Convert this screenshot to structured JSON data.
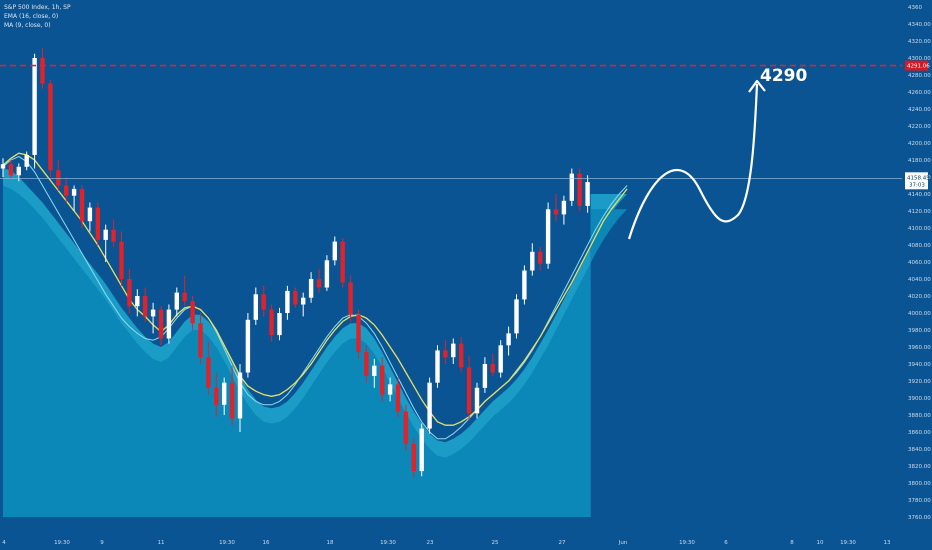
{
  "legend": {
    "title": "S&P 500 Index, 1h, SP",
    "ema": "EMA (16, close, 0)",
    "ma": "MA (9, close, 0)"
  },
  "colors": {
    "background": "#0a5494",
    "area_light": "#0b87b8",
    "area_dark": "#1a9cc6",
    "bull": "#ffffff",
    "bear": "#e0222b",
    "ema": "#e8e060",
    "ma": "#8fdcec",
    "target_line": "#e0222b",
    "current_line": "#9fc3e2"
  },
  "target": {
    "label": "4290",
    "price": 4291.06,
    "price_tag": "4291.06"
  },
  "current": {
    "price": 4158.45,
    "price_tag": "4158.45",
    "timer": "37:03"
  },
  "chart_data": {
    "type": "candlestick",
    "y_axis": {
      "min": 3760,
      "max": 4360,
      "ticks": [
        4360,
        4340,
        4320,
        4300,
        4280,
        4260,
        4240,
        4220,
        4200,
        4180,
        4160,
        4140,
        4120,
        4100,
        4080,
        4060,
        4040,
        4020,
        4000,
        3980,
        3960,
        3940,
        3920,
        3900,
        3880,
        3860,
        3840,
        3820,
        3800,
        3780,
        3760
      ],
      "tick_labels": [
        "4360",
        "4340.00",
        "4320.00",
        "4300.00",
        "4280.00",
        "4260.00",
        "4240.00",
        "4220.00",
        "4200.00",
        "4180.00",
        "4160.00",
        "4140.00",
        "4120.00",
        "4100.00",
        "4080.00",
        "4060.00",
        "4040.00",
        "4020.00",
        "4000.00",
        "3980.00",
        "3960.00",
        "3940.00",
        "3920.00",
        "3900.00",
        "3880.00",
        "3860.00",
        "3840.00",
        "3820.00",
        "3800.00",
        "3780.00",
        "3760.00"
      ]
    },
    "x_axis": {
      "labels": [
        "4",
        "19:30",
        "9",
        "11",
        "19:30",
        "16",
        "18",
        "19:30",
        "23",
        "25",
        "27",
        "Jun",
        "19:30",
        "6",
        "8",
        "10",
        "19:30",
        "13"
      ]
    },
    "candles": [
      [
        4170,
        4182,
        4160,
        4175
      ],
      [
        4175,
        4180,
        4158,
        4162
      ],
      [
        4162,
        4176,
        4155,
        4172
      ],
      [
        4172,
        4190,
        4168,
        4186
      ],
      [
        4186,
        4305,
        4170,
        4300
      ],
      [
        4300,
        4312,
        4264,
        4270
      ],
      [
        4270,
        4274,
        4160,
        4168
      ],
      [
        4168,
        4180,
        4144,
        4150
      ],
      [
        4150,
        4160,
        4130,
        4138
      ],
      [
        4138,
        4150,
        4120,
        4146
      ],
      [
        4146,
        4150,
        4100,
        4108
      ],
      [
        4108,
        4130,
        4096,
        4124
      ],
      [
        4124,
        4130,
        4080,
        4086
      ],
      [
        4086,
        4104,
        4060,
        4098
      ],
      [
        4098,
        4110,
        4078,
        4084
      ],
      [
        4084,
        4096,
        4032,
        4040
      ],
      [
        4040,
        4052,
        4000,
        4008
      ],
      [
        4008,
        4028,
        3996,
        4020
      ],
      [
        4020,
        4030,
        3990,
        3996
      ],
      [
        3996,
        4012,
        3976,
        4004
      ],
      [
        4004,
        4008,
        3962,
        3970
      ],
      [
        3970,
        4010,
        3964,
        4004
      ],
      [
        4004,
        4030,
        3996,
        4024
      ],
      [
        4024,
        4044,
        4008,
        4014
      ],
      [
        4014,
        4020,
        3980,
        3988
      ],
      [
        3988,
        4000,
        3940,
        3948
      ],
      [
        3948,
        3966,
        3904,
        3912
      ],
      [
        3912,
        3930,
        3878,
        3892
      ],
      [
        3892,
        3924,
        3880,
        3918
      ],
      [
        3918,
        3938,
        3868,
        3876
      ],
      [
        3876,
        3940,
        3860,
        3930
      ],
      [
        3930,
        4000,
        3924,
        3992
      ],
      [
        3992,
        4030,
        3986,
        4022
      ],
      [
        4022,
        4032,
        3996,
        4004
      ],
      [
        4004,
        4010,
        3966,
        3974
      ],
      [
        3974,
        4006,
        3968,
        4000
      ],
      [
        4000,
        4032,
        3992,
        4026
      ],
      [
        4026,
        4030,
        4006,
        4010
      ],
      [
        4010,
        4024,
        3996,
        4018
      ],
      [
        4018,
        4048,
        4012,
        4040
      ],
      [
        4040,
        4052,
        4024,
        4030
      ],
      [
        4030,
        4068,
        4026,
        4062
      ],
      [
        4062,
        4090,
        4056,
        4084
      ],
      [
        4084,
        4088,
        4030,
        4036
      ],
      [
        4036,
        4044,
        3990,
        3998
      ],
      [
        3998,
        4004,
        3946,
        3954
      ],
      [
        3954,
        3962,
        3918,
        3926
      ],
      [
        3926,
        3946,
        3912,
        3938
      ],
      [
        3938,
        3948,
        3896,
        3904
      ],
      [
        3904,
        3924,
        3896,
        3916
      ],
      [
        3916,
        3924,
        3878,
        3884
      ],
      [
        3884,
        3892,
        3838,
        3846
      ],
      [
        3846,
        3852,
        3806,
        3814
      ],
      [
        3814,
        3870,
        3808,
        3864
      ],
      [
        3864,
        3924,
        3858,
        3918
      ],
      [
        3918,
        3962,
        3912,
        3956
      ],
      [
        3956,
        3968,
        3940,
        3948
      ],
      [
        3948,
        3970,
        3940,
        3964
      ],
      [
        3964,
        3972,
        3930,
        3936
      ],
      [
        3936,
        3950,
        3874,
        3882
      ],
      [
        3882,
        3918,
        3876,
        3912
      ],
      [
        3912,
        3948,
        3906,
        3940
      ],
      [
        3940,
        3952,
        3926,
        3930
      ],
      [
        3930,
        3968,
        3924,
        3962
      ],
      [
        3962,
        3984,
        3950,
        3976
      ],
      [
        3976,
        4022,
        3970,
        4016
      ],
      [
        4016,
        4056,
        4010,
        4050
      ],
      [
        4050,
        4082,
        4044,
        4072
      ],
      [
        4072,
        4078,
        4050,
        4058
      ],
      [
        4058,
        4130,
        4052,
        4122
      ],
      [
        4122,
        4140,
        4108,
        4116
      ],
      [
        4116,
        4138,
        4104,
        4132
      ],
      [
        4132,
        4170,
        4126,
        4164
      ],
      [
        4164,
        4170,
        4120,
        4126
      ],
      [
        4126,
        4162,
        4118,
        4154
      ]
    ],
    "ema": [
      4174,
      4182,
      4188,
      4186,
      4180,
      4168,
      4156,
      4144,
      4132,
      4120,
      4108,
      4094,
      4080,
      4064,
      4048,
      4032,
      4016,
      4004,
      3996,
      3986,
      3978,
      3986,
      3998,
      4006,
      4008,
      4004,
      3994,
      3980,
      3962,
      3944,
      3926,
      3914,
      3908,
      3904,
      3902,
      3904,
      3910,
      3918,
      3928,
      3940,
      3954,
      3968,
      3980,
      3990,
      3996,
      3998,
      3994,
      3986,
      3974,
      3960,
      3946,
      3930,
      3914,
      3898,
      3884,
      3872,
      3868,
      3868,
      3872,
      3878,
      3886,
      3896,
      3904,
      3912,
      3920,
      3932,
      3944,
      3958,
      3972,
      3988,
      4004,
      4020,
      4036,
      4054,
      4072,
      4090,
      4108,
      4122,
      4134,
      4146
    ],
    "ma": [
      4172,
      4180,
      4184,
      4178,
      4166,
      4150,
      4134,
      4118,
      4102,
      4086,
      4070,
      4054,
      4038,
      4022,
      4008,
      3994,
      3984,
      3976,
      3970,
      3968,
      3972,
      3982,
      3994,
      4004,
      4008,
      4004,
      3994,
      3978,
      3958,
      3938,
      3918,
      3904,
      3896,
      3892,
      3892,
      3896,
      3904,
      3916,
      3930,
      3944,
      3958,
      3972,
      3984,
      3994,
      3998,
      3996,
      3988,
      3976,
      3960,
      3942,
      3924,
      3906,
      3888,
      3872,
      3860,
      3852,
      3852,
      3858,
      3866,
      3876,
      3886,
      3896,
      3904,
      3912,
      3920,
      3930,
      3942,
      3956,
      3972,
      3990,
      4008,
      4026,
      4044,
      4062,
      4080,
      4098,
      4114,
      4128,
      4140,
      4150
    ],
    "band_upper": [
      4170,
      4168,
      4160,
      4150,
      4140,
      4130,
      4118,
      4106,
      4094,
      4082,
      4070,
      4058,
      4046,
      4034,
      4020,
      4006,
      3994,
      3982,
      3972,
      3964,
      3960,
      3966,
      3978,
      3990,
      3998,
      3998,
      3990,
      3978,
      3962,
      3944,
      3926,
      3910,
      3898,
      3890,
      3888,
      3890,
      3896,
      3906,
      3918,
      3932,
      3946,
      3960,
      3972,
      3982,
      3988,
      3988,
      3982,
      3970,
      3954,
      3936,
      3918,
      3900,
      3884,
      3870,
      3858,
      3850,
      3848,
      3852,
      3858,
      3866,
      3876,
      3886,
      3896,
      3904,
      3912,
      3922,
      3934,
      3948,
      3964,
      3980,
      3998,
      4016,
      4034,
      4052,
      4070,
      4088,
      4104,
      4118,
      4130,
      4140
    ],
    "band_lower": [
      4150,
      4146,
      4140,
      4132,
      4122,
      4112,
      4100,
      4088,
      4076,
      4064,
      4052,
      4040,
      4028,
      4016,
      4002,
      3988,
      3976,
      3964,
      3954,
      3946,
      3942,
      3948,
      3960,
      3972,
      3980,
      3980,
      3972,
      3960,
      3944,
      3926,
      3908,
      3892,
      3880,
      3872,
      3870,
      3872,
      3878,
      3888,
      3900,
      3914,
      3928,
      3942,
      3954,
      3964,
      3970,
      3970,
      3964,
      3952,
      3936,
      3918,
      3900,
      3882,
      3866,
      3852,
      3840,
      3832,
      3830,
      3834,
      3840,
      3848,
      3858,
      3868,
      3878,
      3886,
      3894,
      3904,
      3916,
      3930,
      3946,
      3962,
      3980,
      3998,
      4016,
      4034,
      4052,
      4070,
      4086,
      4100,
      4112,
      4122
    ]
  }
}
